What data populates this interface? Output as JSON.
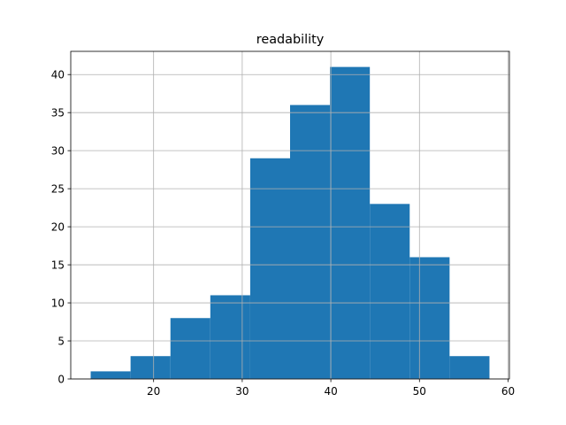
{
  "chart_data": {
    "type": "histogram",
    "title": "readability",
    "bins": [
      12.9,
      17.4,
      21.9,
      26.4,
      30.9,
      35.4,
      39.9,
      44.4,
      48.9,
      53.4,
      57.9
    ],
    "values": [
      1,
      3,
      8,
      11,
      29,
      36,
      41,
      23,
      16,
      3
    ],
    "color": "#1f77b4",
    "xlim": [
      10.65,
      60.15
    ],
    "xticks": [
      20,
      30,
      40,
      50,
      60
    ],
    "ylim": [
      0,
      43.05
    ],
    "yticks": [
      0,
      5,
      10,
      15,
      20,
      25,
      30,
      35,
      40
    ],
    "grid": true
  }
}
